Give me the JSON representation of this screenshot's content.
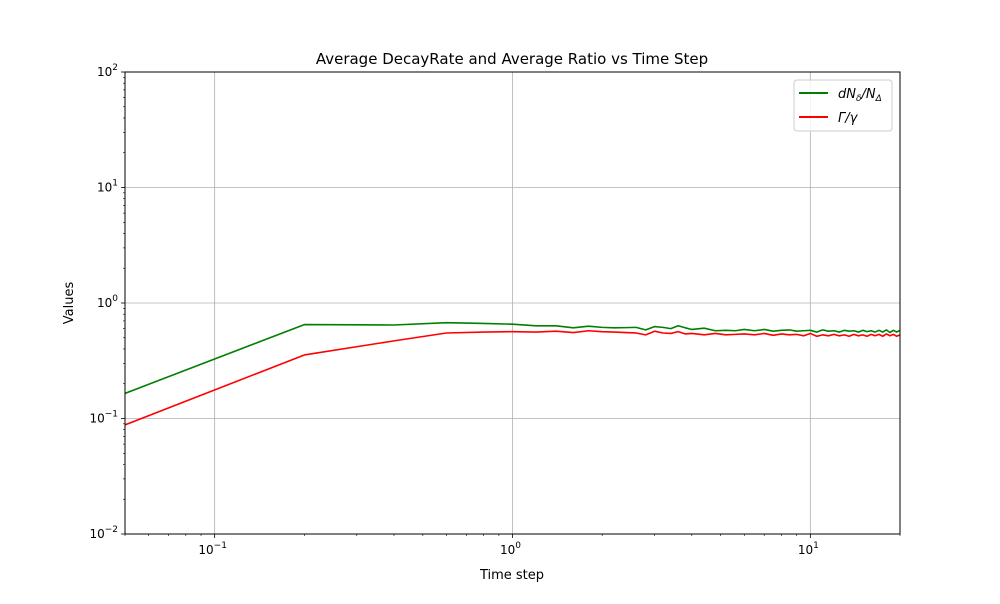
{
  "chart_data": {
    "type": "line",
    "title": "Average DecayRate and Average Ratio vs Time Step",
    "xlabel": "Time step",
    "ylabel": "Values",
    "xscale": "log",
    "yscale": "log",
    "xlim": [
      0.05,
      20
    ],
    "ylim": [
      0.01,
      100
    ],
    "grid": true,
    "legend_position": "upper right",
    "x_ticks": [
      {
        "value": 0.1,
        "base": "10",
        "exp": "−1"
      },
      {
        "value": 1,
        "base": "10",
        "exp": "0"
      },
      {
        "value": 10,
        "base": "10",
        "exp": "1"
      }
    ],
    "y_ticks": [
      {
        "value": 0.01,
        "base": "10",
        "exp": "−2"
      },
      {
        "value": 0.1,
        "base": "10",
        "exp": "−1"
      },
      {
        "value": 1,
        "base": "10",
        "exp": "0"
      },
      {
        "value": 10,
        "base": "10",
        "exp": "1"
      },
      {
        "value": 100,
        "base": "10",
        "exp": "2"
      }
    ],
    "series": [
      {
        "name": "dNδ/NΔ",
        "legend_main": "dN",
        "legend_sub1": "δ",
        "legend_mid": "/N",
        "legend_sub2": "Δ",
        "color": "#008000",
        "x": [
          0.05,
          0.2,
          0.4,
          0.6,
          0.8,
          1.0,
          1.2,
          1.4,
          1.6,
          1.8,
          2.0,
          2.2,
          2.4,
          2.6,
          2.8,
          3.0,
          3.2,
          3.4,
          3.6,
          3.8,
          4.0,
          4.4,
          4.8,
          5.2,
          5.6,
          6.0,
          6.5,
          7.0,
          7.5,
          8.0,
          8.5,
          9.0,
          9.5,
          10.0,
          10.5,
          11.0,
          11.5,
          12.0,
          12.5,
          13.0,
          13.5,
          14.0,
          14.5,
          15.0,
          15.5,
          16.0,
          16.5,
          17.0,
          17.5,
          18.0,
          18.5,
          19.0,
          19.5,
          20.0
        ],
        "y": [
          0.165,
          0.65,
          0.645,
          0.675,
          0.665,
          0.655,
          0.635,
          0.635,
          0.61,
          0.63,
          0.615,
          0.61,
          0.612,
          0.615,
          0.585,
          0.625,
          0.615,
          0.6,
          0.635,
          0.61,
          0.59,
          0.605,
          0.575,
          0.58,
          0.575,
          0.59,
          0.575,
          0.59,
          0.57,
          0.58,
          0.585,
          0.57,
          0.575,
          0.58,
          0.56,
          0.585,
          0.57,
          0.575,
          0.56,
          0.58,
          0.57,
          0.575,
          0.56,
          0.58,
          0.565,
          0.575,
          0.56,
          0.58,
          0.56,
          0.585,
          0.555,
          0.58,
          0.56,
          0.58
        ]
      },
      {
        "name": "Γ/γ",
        "legend_main": "Γ/γ",
        "legend_sub1": "",
        "legend_mid": "",
        "legend_sub2": "",
        "color": "#ff0000",
        "x": [
          0.05,
          0.2,
          0.4,
          0.6,
          0.8,
          1.0,
          1.2,
          1.4,
          1.6,
          1.8,
          2.0,
          2.2,
          2.4,
          2.6,
          2.8,
          3.0,
          3.2,
          3.4,
          3.6,
          3.8,
          4.0,
          4.4,
          4.8,
          5.2,
          5.6,
          6.0,
          6.5,
          7.0,
          7.5,
          8.0,
          8.5,
          9.0,
          9.5,
          10.0,
          10.5,
          11.0,
          11.5,
          12.0,
          12.5,
          13.0,
          13.5,
          14.0,
          14.5,
          15.0,
          15.5,
          16.0,
          16.5,
          17.0,
          17.5,
          18.0,
          18.5,
          19.0,
          19.5,
          20.0
        ],
        "y": [
          0.088,
          0.355,
          0.47,
          0.55,
          0.56,
          0.565,
          0.56,
          0.57,
          0.555,
          0.575,
          0.565,
          0.56,
          0.555,
          0.55,
          0.53,
          0.57,
          0.55,
          0.545,
          0.565,
          0.54,
          0.545,
          0.53,
          0.545,
          0.53,
          0.535,
          0.54,
          0.53,
          0.545,
          0.525,
          0.54,
          0.53,
          0.535,
          0.52,
          0.545,
          0.515,
          0.53,
          0.52,
          0.535,
          0.52,
          0.53,
          0.515,
          0.535,
          0.52,
          0.53,
          0.515,
          0.535,
          0.52,
          0.535,
          0.515,
          0.54,
          0.52,
          0.535,
          0.515,
          0.53
        ]
      }
    ]
  }
}
